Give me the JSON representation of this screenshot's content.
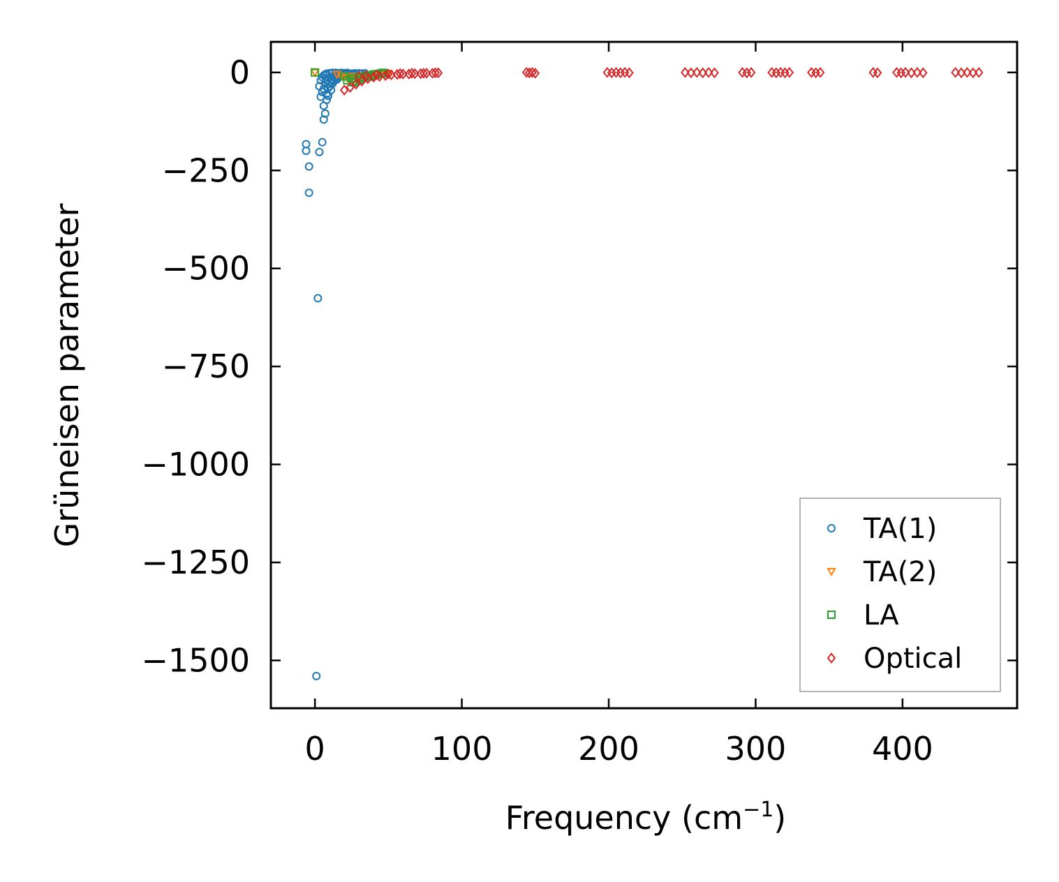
{
  "chart_data": {
    "type": "scatter",
    "title": "",
    "xlabel": "Frequency (cm",
    "xlabel_sup": "−1",
    "xlabel_end": ")",
    "ylabel": "Grüneisen parameter",
    "xlim": [
      -30,
      478
    ],
    "ylim": [
      -1622,
      78
    ],
    "xticks": [
      0,
      100,
      200,
      300,
      400
    ],
    "xtick_labels": [
      "0",
      "100",
      "200",
      "300",
      "400"
    ],
    "yticks": [
      0,
      -250,
      -500,
      -750,
      -1000,
      -1250,
      -1500
    ],
    "ytick_labels": [
      "0",
      "−250",
      "−500",
      "−750",
      "−1000",
      "−1250",
      "−1500"
    ],
    "grid": false,
    "legend_position": "lower-right",
    "series": [
      {
        "name": "TA(1)",
        "marker": "circle",
        "color": "#1f77b4",
        "points": [
          [
            -6,
            -183
          ],
          [
            -6,
            -200
          ],
          [
            -4,
            -240
          ],
          [
            -4,
            -307
          ],
          [
            3,
            -203
          ],
          [
            5,
            -178
          ],
          [
            2,
            -576
          ],
          [
            1,
            -1540
          ],
          [
            6,
            -120
          ],
          [
            7,
            -105
          ],
          [
            6,
            -85
          ],
          [
            8,
            -70
          ],
          [
            4,
            -62
          ],
          [
            5,
            -50
          ],
          [
            3,
            -35
          ],
          [
            6,
            -42
          ],
          [
            9,
            -30
          ],
          [
            10,
            -25
          ],
          [
            12,
            -20
          ],
          [
            14,
            -15
          ],
          [
            8,
            -55
          ],
          [
            9,
            -40
          ],
          [
            11,
            -18
          ],
          [
            13,
            -10
          ],
          [
            15,
            -8
          ],
          [
            17,
            -6
          ],
          [
            19,
            -5
          ],
          [
            21,
            -4
          ],
          [
            23,
            -3
          ],
          [
            25,
            -3
          ],
          [
            27,
            -2
          ],
          [
            30,
            -2
          ],
          [
            7,
            -28
          ],
          [
            10,
            -35
          ],
          [
            12,
            -28
          ],
          [
            16,
            -12
          ],
          [
            18,
            -9
          ],
          [
            20,
            -7
          ],
          [
            22,
            -6
          ],
          [
            24,
            -5
          ],
          [
            26,
            -4
          ],
          [
            28,
            -4
          ],
          [
            32,
            -3
          ],
          [
            34,
            -2
          ],
          [
            11,
            -45
          ],
          [
            9,
            -60
          ],
          [
            13,
            -22
          ],
          [
            15,
            -18
          ],
          [
            4,
            -20
          ],
          [
            5,
            -12
          ],
          [
            6,
            -8
          ],
          [
            7,
            -5
          ],
          [
            8,
            -3
          ],
          [
            10,
            -2
          ],
          [
            12,
            -1
          ],
          [
            14,
            -1
          ],
          [
            16,
            -2
          ],
          [
            18,
            -1
          ],
          [
            20,
            -2
          ],
          [
            22,
            -1
          ]
        ]
      },
      {
        "name": "TA(2)",
        "marker": "triangle-down",
        "color": "#ff7f0e",
        "points": [
          [
            0,
            0
          ],
          [
            15,
            -5
          ],
          [
            20,
            -8
          ],
          [
            25,
            -10
          ],
          [
            30,
            -12
          ],
          [
            35,
            -8
          ],
          [
            40,
            -6
          ],
          [
            45,
            -4
          ],
          [
            50,
            -3
          ],
          [
            22,
            -15
          ],
          [
            28,
            -18
          ],
          [
            32,
            -14
          ],
          [
            38,
            -9
          ],
          [
            42,
            -5
          ],
          [
            48,
            -2
          ],
          [
            18,
            -10
          ],
          [
            26,
            -20
          ],
          [
            34,
            -12
          ]
        ]
      },
      {
        "name": "LA",
        "marker": "square",
        "color": "#2ca02c",
        "points": [
          [
            0,
            0
          ],
          [
            20,
            -10
          ],
          [
            25,
            -15
          ],
          [
            30,
            -12
          ],
          [
            35,
            -8
          ],
          [
            40,
            -5
          ],
          [
            45,
            -3
          ],
          [
            47,
            -2
          ],
          [
            22,
            -20
          ],
          [
            28,
            -22
          ],
          [
            33,
            -14
          ],
          [
            38,
            -9
          ],
          [
            43,
            -4
          ],
          [
            26,
            -25
          ],
          [
            31,
            -18
          ],
          [
            36,
            -11
          ],
          [
            41,
            -6
          ],
          [
            46,
            -1
          ]
        ]
      },
      {
        "name": "Optical",
        "marker": "diamond",
        "color": "#d62728",
        "points": [
          [
            20,
            -45
          ],
          [
            24,
            -38
          ],
          [
            28,
            -30
          ],
          [
            32,
            -22
          ],
          [
            36,
            -16
          ],
          [
            40,
            -12
          ],
          [
            44,
            -10
          ],
          [
            48,
            -8
          ],
          [
            52,
            -6
          ],
          [
            56,
            -5
          ],
          [
            60,
            -4
          ],
          [
            64,
            -4
          ],
          [
            68,
            -3
          ],
          [
            72,
            -3
          ],
          [
            76,
            -2
          ],
          [
            80,
            -2
          ],
          [
            84,
            -1
          ],
          [
            30,
            -10
          ],
          [
            35,
            -8
          ],
          [
            42,
            -6
          ],
          [
            50,
            -4
          ],
          [
            58,
            -3
          ],
          [
            66,
            -2
          ],
          [
            74,
            -2
          ],
          [
            82,
            -1
          ],
          [
            144,
            0
          ],
          [
            146,
            -1
          ],
          [
            148,
            0
          ],
          [
            150,
            -2
          ],
          [
            199,
            0
          ],
          [
            202,
            -1
          ],
          [
            205,
            0
          ],
          [
            208,
            -1
          ],
          [
            211,
            0
          ],
          [
            214,
            -1
          ],
          [
            252,
            0
          ],
          [
            256,
            -1
          ],
          [
            260,
            0
          ],
          [
            264,
            -1
          ],
          [
            268,
            0
          ],
          [
            272,
            -1
          ],
          [
            291,
            0
          ],
          [
            294,
            -1
          ],
          [
            297,
            0
          ],
          [
            311,
            0
          ],
          [
            314,
            -1
          ],
          [
            317,
            0
          ],
          [
            320,
            -1
          ],
          [
            323,
            0
          ],
          [
            338,
            0
          ],
          [
            341,
            -1
          ],
          [
            344,
            0
          ],
          [
            380,
            0
          ],
          [
            383,
            -1
          ],
          [
            396,
            0
          ],
          [
            399,
            -1
          ],
          [
            402,
            0
          ],
          [
            406,
            -1
          ],
          [
            410,
            0
          ],
          [
            414,
            -1
          ],
          [
            436,
            0
          ],
          [
            440,
            -1
          ],
          [
            444,
            0
          ],
          [
            448,
            -1
          ],
          [
            452,
            0
          ]
        ]
      }
    ]
  }
}
